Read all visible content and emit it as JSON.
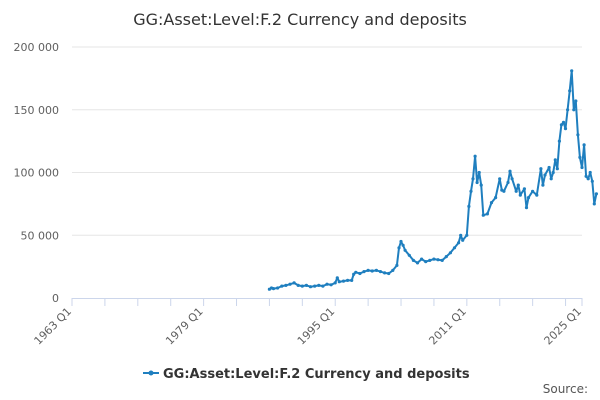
{
  "chart_data": {
    "type": "line",
    "title": "GG:Asset:Level:F.2 Currency and deposits",
    "xlabel": "",
    "ylabel": "",
    "x_range": [
      1963.0,
      2025.0
    ],
    "ylim": [
      0,
      200000
    ],
    "y_ticks": [
      0,
      50000,
      100000,
      150000,
      200000
    ],
    "y_tick_labels": [
      "0",
      "50 000",
      "100 000",
      "150 000",
      "200 000"
    ],
    "x_ticks": [
      1963.0,
      1979.0,
      1995.0,
      2011.0,
      2025.0
    ],
    "x_tick_labels": [
      "1963 Q1",
      "1979 Q1",
      "1995 Q1",
      "2011 Q1",
      "2025 Q1"
    ],
    "grid": "horizontal",
    "legend_position": "bottom",
    "source_label": "Source:",
    "series": [
      {
        "name": "GG:Asset:Level:F.2 Currency and deposits",
        "color": "#1f7fbf",
        "points": [
          [
            1987.0,
            7000
          ],
          [
            1987.25,
            8000
          ],
          [
            1987.5,
            7500
          ],
          [
            1988.0,
            8000
          ],
          [
            1988.5,
            9500
          ],
          [
            1989.0,
            10000
          ],
          [
            1989.5,
            11000
          ],
          [
            1990.0,
            12000
          ],
          [
            1990.5,
            10000
          ],
          [
            1991.0,
            9500
          ],
          [
            1991.5,
            10000
          ],
          [
            1992.0,
            9000
          ],
          [
            1992.5,
            9500
          ],
          [
            1993.0,
            10000
          ],
          [
            1993.5,
            9500
          ],
          [
            1994.0,
            11000
          ],
          [
            1994.5,
            10500
          ],
          [
            1995.0,
            12000
          ],
          [
            1995.25,
            16000
          ],
          [
            1995.5,
            13000
          ],
          [
            1996.0,
            13500
          ],
          [
            1996.5,
            14000
          ],
          [
            1997.0,
            14000
          ],
          [
            1997.25,
            19000
          ],
          [
            1997.5,
            20500
          ],
          [
            1998.0,
            19500
          ],
          [
            1998.5,
            21000
          ],
          [
            1999.0,
            22000
          ],
          [
            1999.5,
            21500
          ],
          [
            2000.0,
            22000
          ],
          [
            2000.5,
            21000
          ],
          [
            2001.0,
            20000
          ],
          [
            2001.5,
            19500
          ],
          [
            2002.0,
            22000
          ],
          [
            2002.5,
            26000
          ],
          [
            2002.75,
            40000
          ],
          [
            2003.0,
            45000
          ],
          [
            2003.25,
            42000
          ],
          [
            2003.5,
            38000
          ],
          [
            2004.0,
            34000
          ],
          [
            2004.5,
            30000
          ],
          [
            2005.0,
            28000
          ],
          [
            2005.5,
            31000
          ],
          [
            2006.0,
            29000
          ],
          [
            2006.5,
            30000
          ],
          [
            2007.0,
            31000
          ],
          [
            2007.5,
            30500
          ],
          [
            2008.0,
            30000
          ],
          [
            2008.5,
            33000
          ],
          [
            2009.0,
            36000
          ],
          [
            2009.5,
            40000
          ],
          [
            2010.0,
            44000
          ],
          [
            2010.25,
            50000
          ],
          [
            2010.5,
            46000
          ],
          [
            2011.0,
            50000
          ],
          [
            2011.25,
            73000
          ],
          [
            2011.5,
            85000
          ],
          [
            2011.75,
            95000
          ],
          [
            2012.0,
            113000
          ],
          [
            2012.25,
            92000
          ],
          [
            2012.5,
            100000
          ],
          [
            2012.75,
            90000
          ],
          [
            2013.0,
            66000
          ],
          [
            2013.5,
            67000
          ],
          [
            2014.0,
            76000
          ],
          [
            2014.5,
            80000
          ],
          [
            2015.0,
            95000
          ],
          [
            2015.25,
            86000
          ],
          [
            2015.5,
            85000
          ],
          [
            2016.0,
            92000
          ],
          [
            2016.25,
            101000
          ],
          [
            2016.5,
            95000
          ],
          [
            2017.0,
            85000
          ],
          [
            2017.25,
            90000
          ],
          [
            2017.5,
            82000
          ],
          [
            2018.0,
            87000
          ],
          [
            2018.25,
            72000
          ],
          [
            2018.5,
            80000
          ],
          [
            2019.0,
            85000
          ],
          [
            2019.5,
            82000
          ],
          [
            2020.0,
            103000
          ],
          [
            2020.25,
            90000
          ],
          [
            2020.5,
            98000
          ],
          [
            2021.0,
            104000
          ],
          [
            2021.25,
            95000
          ],
          [
            2021.5,
            100000
          ],
          [
            2021.75,
            110000
          ],
          [
            2022.0,
            103000
          ],
          [
            2022.25,
            125000
          ],
          [
            2022.5,
            138000
          ],
          [
            2022.75,
            140000
          ],
          [
            2023.0,
            135000
          ],
          [
            2023.25,
            150000
          ],
          [
            2023.5,
            165000
          ],
          [
            2023.75,
            181000
          ],
          [
            2024.0,
            150000
          ],
          [
            2024.25,
            157000
          ],
          [
            2024.5,
            130000
          ],
          [
            2024.75,
            112000
          ],
          [
            2025.0,
            104000
          ],
          [
            2025.25,
            122000
          ],
          [
            2025.5,
            97000
          ],
          [
            2025.75,
            95000
          ],
          [
            2026.0,
            100000
          ],
          [
            2026.25,
            93000
          ],
          [
            2026.5,
            75000
          ],
          [
            2026.75,
            83000
          ]
        ]
      }
    ]
  }
}
